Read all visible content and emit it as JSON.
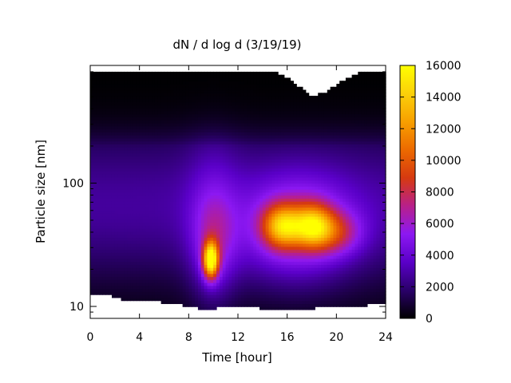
{
  "chart_data": {
    "type": "heatmap",
    "title": "dN / d log d (3/19/19)",
    "xlabel": "Time [hour]",
    "ylabel": "Particle size [nm]",
    "x_ticks": [
      0,
      4,
      8,
      12,
      16,
      20,
      24
    ],
    "x_tick_labels": [
      "0",
      "4",
      "8",
      "12",
      "16",
      "20",
      "24"
    ],
    "xlim": [
      0,
      24
    ],
    "y_scale": "log",
    "y_ticks": [
      10,
      100
    ],
    "y_tick_labels": [
      "10",
      "100"
    ],
    "ylim": [
      8,
      900
    ],
    "colorbar": {
      "range": [
        0,
        16000
      ],
      "ticks": [
        0,
        2000,
        4000,
        6000,
        8000,
        10000,
        12000,
        14000,
        16000
      ],
      "tick_labels": [
        "0",
        "2000",
        "4000",
        "6000",
        "8000",
        "10000",
        "12000",
        "14000",
        "16000"
      ],
      "colormap": [
        "#000000",
        "#2a0069",
        "#5a00c8",
        "#8c18f2",
        "#b8208a",
        "#d63a10",
        "#ec6a00",
        "#f8a000",
        "#fbd00a",
        "#ffff00"
      ]
    },
    "size_range_nm": [
      10,
      800
    ],
    "data_coverage": {
      "time_hours": [
        0,
        1.2,
        2.0,
        2.8,
        4.0,
        5.5,
        6.5,
        7.2,
        8.0,
        9.0,
        10.0,
        11.0,
        12.0,
        13.0,
        14.0,
        15.0,
        16.0,
        17.0,
        18.0,
        19.0,
        20.0,
        21.0,
        22.0,
        23.0,
        24.0
      ],
      "min_size_nm": [
        12.5,
        12.5,
        12.0,
        11.0,
        11.0,
        11.0,
        10.5,
        10.5,
        10.0,
        9.6,
        9.6,
        10.0,
        10.0,
        10.0,
        9.6,
        9.6,
        9.6,
        9.6,
        9.6,
        10.0,
        10.0,
        10.0,
        10.0,
        10.5,
        10.5
      ],
      "max_size_nm": [
        800,
        800,
        800,
        800,
        800,
        800,
        800,
        800,
        800,
        800,
        800,
        800,
        800,
        800,
        800,
        800,
        720,
        600,
        500,
        540,
        620,
        720,
        800,
        800,
        800
      ]
    },
    "features": [
      {
        "time_h": 9.8,
        "size_nm": 24,
        "value": 14500
      },
      {
        "time_h": 15.5,
        "size_nm": 45,
        "value": 12500
      },
      {
        "time_h": 18.0,
        "size_nm": 45,
        "value": 12500
      }
    ]
  }
}
